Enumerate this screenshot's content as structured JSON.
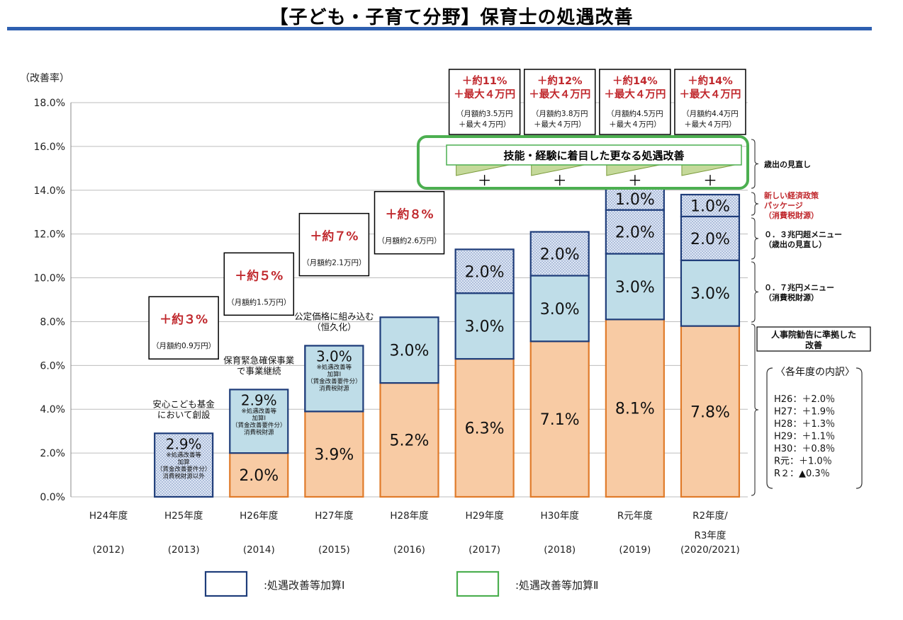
{
  "title": "【子ども・子育て分野】保育士の処遇改善",
  "y_axis_label": "（改善率）",
  "chart_data": {
    "type": "bar",
    "stacked": true,
    "ylim": [
      0,
      18
    ],
    "y_ticks": [
      "0.0%",
      "2.0%",
      "4.0%",
      "6.0%",
      "8.0%",
      "10.0%",
      "12.0%",
      "14.0%",
      "16.0%",
      "18.0%"
    ],
    "categories": [
      {
        "label": "H24年度",
        "year": "(2012)"
      },
      {
        "label": "H25年度",
        "year": "(2013)"
      },
      {
        "label": "H26年度",
        "year": "(2014)"
      },
      {
        "label": "H27年度",
        "year": "(2015)"
      },
      {
        "label": "H28年度",
        "year": "(2016)"
      },
      {
        "label": "H29年度",
        "year": "(2017)"
      },
      {
        "label": "H30年度",
        "year": "(2018)"
      },
      {
        "label": "R元年度",
        "year": "(2019)"
      },
      {
        "label": "R2年度/",
        "label2": "R3年度",
        "year": "(2020/2021)"
      }
    ],
    "series": [
      {
        "key": "base",
        "values": [
          0,
          0,
          2.0,
          3.9,
          5.2,
          6.3,
          7.1,
          8.1,
          7.8
        ],
        "color": "#f8cba4",
        "border": "#e07b2a"
      },
      {
        "key": "mid",
        "values": [
          0,
          0,
          0,
          3.0,
          3.0,
          3.0,
          3.0,
          3.0,
          3.0
        ],
        "color": "#bfdde8",
        "border": "#1f3d7a"
      },
      {
        "key": "dot2",
        "values": [
          0,
          0,
          0,
          0,
          0,
          2.0,
          2.0,
          2.0,
          2.0
        ],
        "color": "#d9e3f2",
        "border": "#1f3d7a"
      },
      {
        "key": "dot1",
        "values": [
          0,
          0,
          0,
          0,
          0,
          0,
          0,
          1.0,
          1.0
        ],
        "color": "#d9e3f2",
        "border": "#1f3d7a"
      }
    ],
    "special": [
      {
        "index": 1,
        "value": 2.9,
        "label": "2.9%",
        "note": [
          "※処遇改善等",
          "加算",
          "（賃金改善要件分）",
          "消費税財源以外"
        ]
      },
      {
        "index": 2,
        "value": 2.9,
        "label": "2.9%",
        "note": [
          "※処遇改善等",
          "加算Ⅰ",
          "（賃金改善要件分）",
          "消費税財源"
        ]
      },
      {
        "index": 3,
        "value": 3.0,
        "label": "3.0%",
        "note": [
          "※処遇改善等",
          "加算Ⅰ",
          "（賃金改善要件分）",
          "消費税財源"
        ]
      }
    ],
    "segment_labels": {
      "base": [
        "",
        "",
        "2.0%",
        "3.9%",
        "5.2%",
        "6.3%",
        "7.1%",
        "8.1%",
        "7.8%"
      ],
      "mid": [
        "",
        "",
        "",
        "",
        "3.0%",
        "3.0%",
        "3.0%",
        "3.0%",
        "3.0%"
      ],
      "dot2": [
        "",
        "",
        "",
        "",
        "",
        "2.0%",
        "2.0%",
        "2.0%",
        "2.0%"
      ],
      "dot1": [
        "",
        "",
        "",
        "",
        "",
        "",
        "",
        "1.0%",
        "1.0%"
      ]
    }
  },
  "annotations": {
    "h25_creation": [
      "安心こども基金",
      "において創設"
    ],
    "h26_continue": [
      "保育緊急確保事業",
      "で事業継続"
    ],
    "h27_permanent": [
      "公定価格に組み込む",
      "（恒久化）"
    ],
    "boxes": [
      {
        "big": "＋約３%",
        "small": "（月額約0.9万円）"
      },
      {
        "big": "＋約５%",
        "small": "（月額約1.5万円）"
      },
      {
        "big": "＋約７%",
        "small": "（月額約2.1万円）"
      },
      {
        "big": "＋約８%",
        "small": "（月額約2.6万円）"
      }
    ],
    "top_boxes": [
      {
        "l1": "＋約11%",
        "l2": "＋最大４万円",
        "s1": "（月額約3.5万円",
        "s2": "＋最大４万円）"
      },
      {
        "l1": "＋約12%",
        "l2": "＋最大４万円",
        "s1": "（月額約3.8万円",
        "s2": "＋最大４万円）"
      },
      {
        "l1": "＋約14%",
        "l2": "＋最大４万円",
        "s1": "（月額約4.5万円",
        "s2": "＋最大４万円）"
      },
      {
        "l1": "＋約14%",
        "l2": "＋最大４万円",
        "s1": "（月額約4.4万円",
        "s2": "＋最大４万円）"
      }
    ],
    "skill_banner": "技能・経験に着目した更なる処遇改善",
    "plus": "＋"
  },
  "side_labels": {
    "budget_review": "歳出の見直し",
    "new_package": [
      "新しい経済政策",
      "パッケージ",
      "（消費税財源）"
    ],
    "menu_03": [
      "０．３兆円超メニュー",
      "（歳出の見直し）"
    ],
    "menu_07": [
      "０．７兆円メニュー",
      "（消費税財源）"
    ],
    "jinjiin": [
      "人事院勧告に準拠した",
      "改善"
    ]
  },
  "breakdown": {
    "title": "〈各年度の内訳〉",
    "items": [
      "H26：＋2.0％",
      "H27：＋1.9％",
      "H28：＋1.3％",
      "H29：＋1.1％",
      "H30：＋0.8％",
      "R元：＋1.0％",
      "R２：▲0.3％"
    ]
  },
  "legend": [
    {
      "label": ":処遇改善等加算Ⅰ",
      "color": "#1f3d7a"
    },
    {
      "label": ":処遇改善等加算Ⅱ",
      "color": "#4caf50"
    }
  ]
}
